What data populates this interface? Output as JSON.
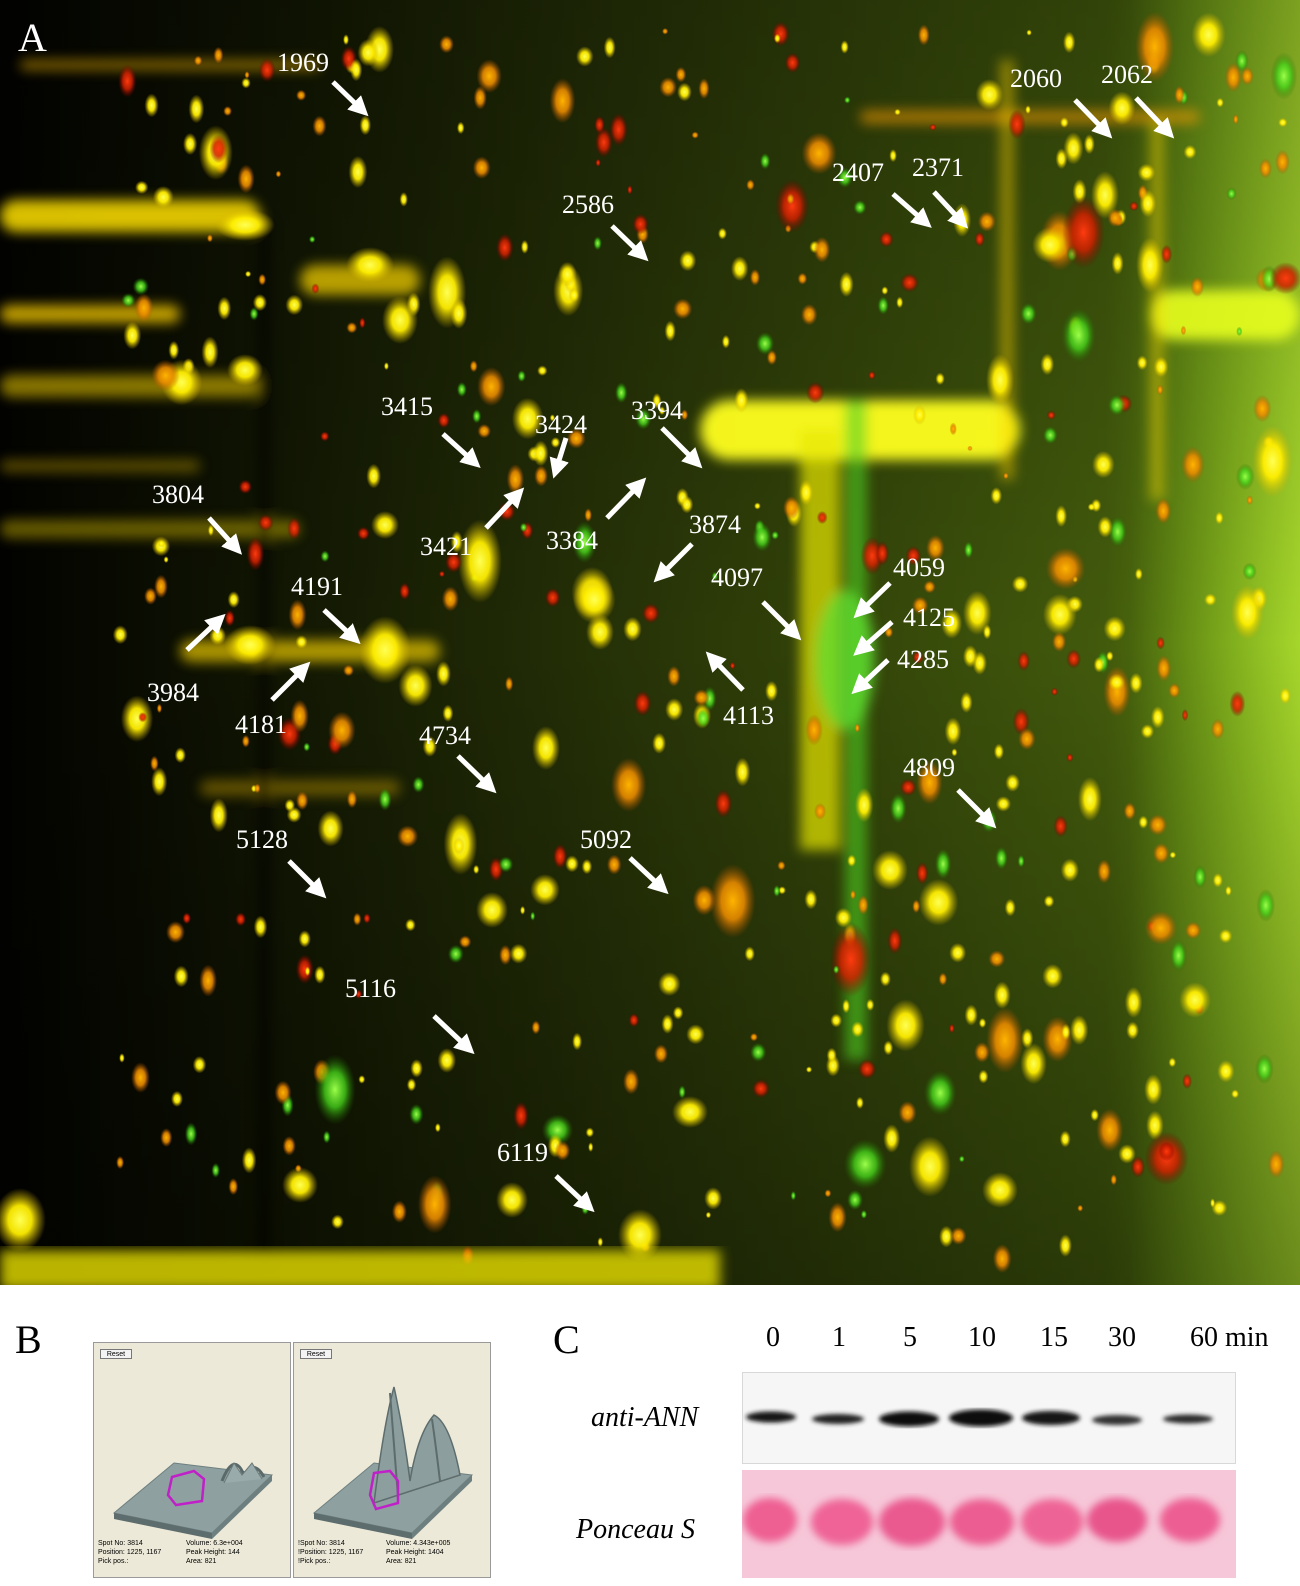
{
  "panel_a": {
    "letter": "A",
    "spot_labels": [
      {
        "id": "1969"
      },
      {
        "id": "2060"
      },
      {
        "id": "2062"
      },
      {
        "id": "2407"
      },
      {
        "id": "2371"
      },
      {
        "id": "2586"
      },
      {
        "id": "3415"
      },
      {
        "id": "3424"
      },
      {
        "id": "3394"
      },
      {
        "id": "3804"
      },
      {
        "id": "3421"
      },
      {
        "id": "3384"
      },
      {
        "id": "3874"
      },
      {
        "id": "4059"
      },
      {
        "id": "4097"
      },
      {
        "id": "4125"
      },
      {
        "id": "4285"
      },
      {
        "id": "4191"
      },
      {
        "id": "3984"
      },
      {
        "id": "4181"
      },
      {
        "id": "4113"
      },
      {
        "id": "4734"
      },
      {
        "id": "4809"
      },
      {
        "id": "5128"
      },
      {
        "id": "5092"
      },
      {
        "id": "5116"
      },
      {
        "id": "6119"
      }
    ]
  },
  "panel_b": {
    "letter": "B",
    "windows": [
      {
        "reset": "Reset",
        "spot_no_label": "Spot No:",
        "spot_no": "3814",
        "position_label": "Position:",
        "position": "1225, 1167",
        "pick_label": "Pick pos.:",
        "volume_label": "Volume:",
        "volume": "6.3e+004",
        "peak_label": "Peak Height:",
        "peak": "144",
        "area_label": "Area:",
        "area": "821"
      },
      {
        "reset": "Reset",
        "spot_no_label": "!Spot No:",
        "spot_no": "3814",
        "position_label": "!Position:",
        "position": "1225, 1167",
        "pick_label": "!Pick pos.:",
        "volume_label": "Volume:",
        "volume": "4.343e+005",
        "peak_label": "Peak Height:",
        "peak": "1404",
        "area_label": "Area:",
        "area": "821"
      }
    ]
  },
  "panel_c": {
    "letter": "C",
    "times": [
      "0",
      "1",
      "5",
      "10",
      "15",
      "30",
      "60 min"
    ],
    "row_labels": {
      "antibody": "anti-ANN",
      "stain": "Ponceau S"
    },
    "colors": {
      "western_band": "#151515",
      "ponceau_background": "#f6c7d8",
      "ponceau_band": "#ee5e92"
    }
  }
}
